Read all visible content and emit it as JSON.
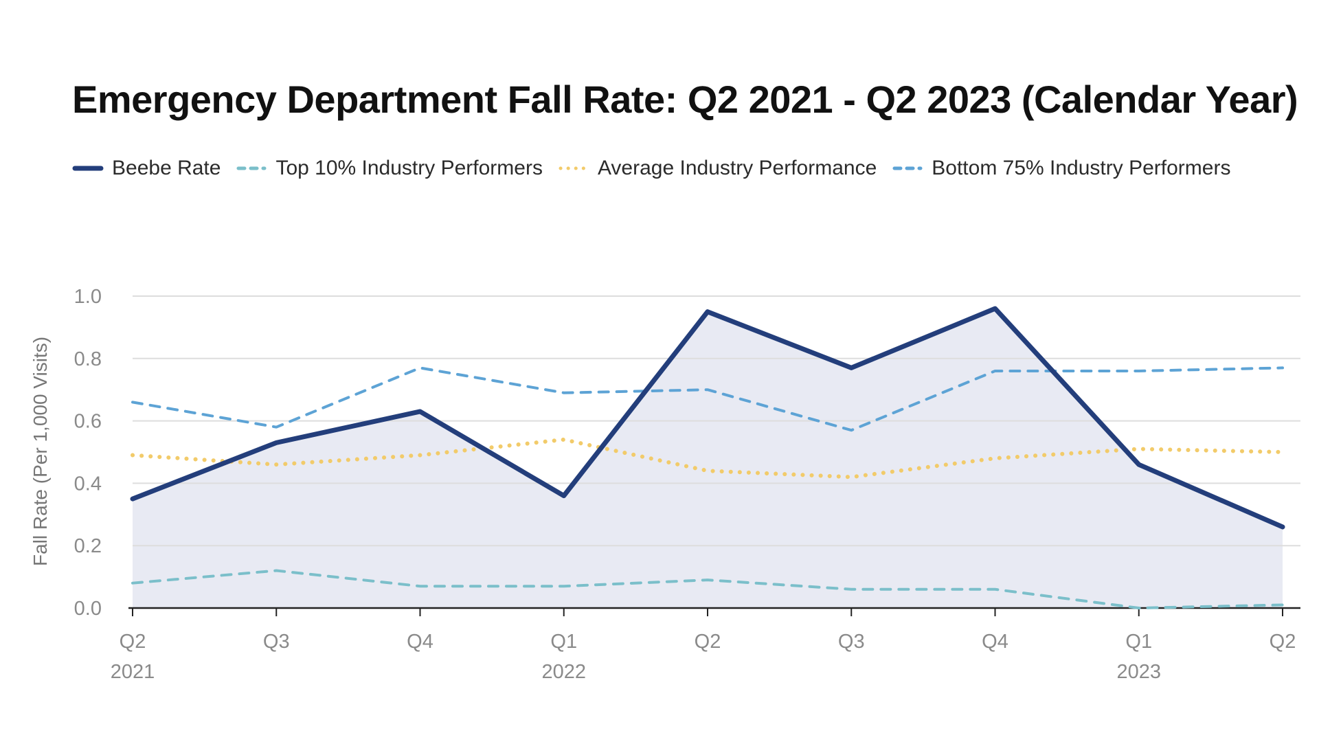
{
  "chart_data": {
    "type": "line",
    "title": "Emergency Department Fall Rate: Q2 2021 - Q2 2023 (Calendar Year)",
    "xlabel": "",
    "ylabel": "Fall Rate (Per 1,000 Visits)",
    "ylim": [
      0,
      1.0
    ],
    "yticks": [
      "0.0",
      "0.2",
      "0.4",
      "0.6",
      "0.8",
      "1.0"
    ],
    "categories": [
      {
        "quarter": "Q2",
        "year": "2021"
      },
      {
        "quarter": "Q3",
        "year": ""
      },
      {
        "quarter": "Q4",
        "year": ""
      },
      {
        "quarter": "Q1",
        "year": "2022"
      },
      {
        "quarter": "Q2",
        "year": ""
      },
      {
        "quarter": "Q3",
        "year": ""
      },
      {
        "quarter": "Q4",
        "year": ""
      },
      {
        "quarter": "Q1",
        "year": "2023"
      },
      {
        "quarter": "Q2",
        "year": ""
      }
    ],
    "grid": true,
    "legend_position": "top-left",
    "series": [
      {
        "name": "Beebe Rate",
        "style": "solid",
        "area_fill": true,
        "color": "#233e7b",
        "values": [
          0.35,
          0.53,
          0.63,
          0.36,
          0.95,
          0.77,
          0.96,
          0.46,
          0.26
        ]
      },
      {
        "name": "Top 10% Industry Performers",
        "style": "dashed",
        "color": "#7bbfca",
        "values": [
          0.08,
          0.12,
          0.07,
          0.07,
          0.09,
          0.06,
          0.06,
          0.0,
          0.01
        ]
      },
      {
        "name": "Average Industry Performance",
        "style": "dotted",
        "color": "#f2cb6a",
        "values": [
          0.49,
          0.46,
          0.49,
          0.54,
          0.44,
          0.42,
          0.48,
          0.51,
          0.5
        ]
      },
      {
        "name": "Bottom 75% Industry Performers",
        "style": "dashed",
        "color": "#5da3d5",
        "values": [
          0.66,
          0.58,
          0.77,
          0.69,
          0.7,
          0.57,
          0.76,
          0.76,
          0.77
        ]
      }
    ],
    "area_color": "#e8eaf3",
    "grid_color": "#dddddd",
    "axis_color": "#222222"
  }
}
